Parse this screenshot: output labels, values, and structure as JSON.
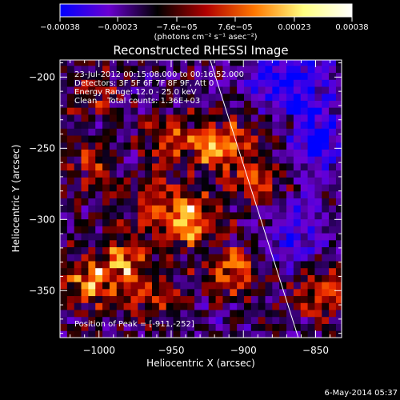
{
  "chart_data": {
    "type": "heatmap",
    "title": "Reconstructed RHESSI Image",
    "xlabel": "Heliocentric X (arcsec)",
    "ylabel": "Heliocentric Y (arcsec)",
    "xlim": [
      -1027,
      -832
    ],
    "ylim": [
      -383,
      -188
    ],
    "xticks": [
      -1000,
      -950,
      -900,
      -850
    ],
    "xtick_labels": [
      "−1000",
      "−950",
      "−900",
      "−850"
    ],
    "yticks": [
      -200,
      -250,
      -300,
      -350
    ],
    "ytick_labels": [
      "−200",
      "−250",
      "−300",
      "−350"
    ],
    "colorbar": {
      "ticks": [
        -0.00038,
        -0.00023,
        -7.6e-05,
        7.6e-05,
        0.00023,
        0.00038
      ],
      "tick_labels": [
        "−0.00038",
        "−0.00023",
        "−7.6e−05",
        "7.6e−05",
        "0.00023",
        "0.00038"
      ],
      "range": [
        -0.00038,
        0.00038
      ],
      "unit_label": "(photons cm⁻² s⁻¹ asec⁻²)",
      "colors": [
        "#0000ff",
        "#6a00d0",
        "#000000",
        "#b00000",
        "#ff7800",
        "#ffff80",
        "#ffffff"
      ]
    },
    "annotations": [
      "23-Jul-2012 00:15:08.000 to 00:16:52.000",
      "Detectors: 3F 5F 6F 7F 8F 9F, Att 0",
      "Energy Range: 12.0 - 25.0 keV",
      "Clean    Total counts: 1.36E+03"
    ],
    "peak_label": "Position of Peak = [-911,-252]",
    "peak": [
      -911,
      -252
    ],
    "limb_line": [
      [
        -923,
        -188
      ],
      [
        -862,
        -383
      ]
    ],
    "hotspots": [
      {
        "x": -985,
        "y": -330,
        "amp": 0.0003
      },
      {
        "x": -950,
        "y": -245,
        "amp": 0.00025
      },
      {
        "x": -915,
        "y": -248,
        "amp": 0.00034
      },
      {
        "x": -935,
        "y": -300,
        "amp": 0.00033
      },
      {
        "x": -905,
        "y": -335,
        "amp": 0.00028
      },
      {
        "x": -845,
        "y": -350,
        "amp": 0.00028
      },
      {
        "x": -1010,
        "y": -345,
        "amp": 0.00025
      },
      {
        "x": -960,
        "y": -290,
        "amp": 0.0002
      },
      {
        "x": -1005,
        "y": -265,
        "amp": 0.00018
      },
      {
        "x": -1005,
        "y": -210,
        "amp": 0.00015
      },
      {
        "x": -890,
        "y": -275,
        "amp": 0.0002
      },
      {
        "x": -960,
        "y": -355,
        "amp": 0.00018
      },
      {
        "x": -875,
        "y": -240,
        "amp": 0.00012
      }
    ],
    "cold_regions": [
      {
        "x": -850,
        "y": -245,
        "amp": -0.0003
      },
      {
        "x": -865,
        "y": -310,
        "amp": -0.00022
      },
      {
        "x": -880,
        "y": -200,
        "amp": -0.00018
      },
      {
        "x": -860,
        "y": -205,
        "amp": -0.00022
      }
    ]
  },
  "footer": {
    "date": "6-May-2014 05:37"
  }
}
